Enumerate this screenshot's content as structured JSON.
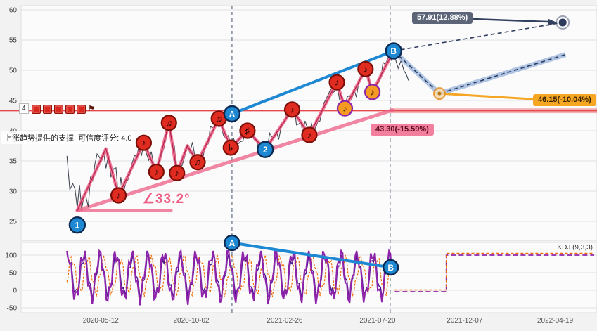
{
  "colors": {
    "red_line": "#e5484d",
    "pink": "#ee5f85",
    "pink_dark": "#a1123a",
    "blue": "#1e88d2",
    "navy": "#2c3a5c",
    "band": "#9db8dd",
    "orange": "#f5a623",
    "purple": "#8e24aa",
    "purple_dark": "#4a148c",
    "orange_dark": "#ef6c00",
    "price": "#2e3440",
    "grid": "#e2e2e4",
    "vline": "#6b7a8c",
    "red_marker": "#e02b20",
    "red_marker_ring": "#7a0f08",
    "orange_marker": "#f59a23",
    "orange_marker_ring": "#8e24aa"
  },
  "icons": {
    "flag": "⚑",
    "red_box_count": 5
  },
  "chart_data": {
    "type": "line",
    "x_ticks": [
      {
        "pos": 0.139,
        "label": "2020-05-12"
      },
      {
        "pos": 0.297,
        "label": "2020-10-02"
      },
      {
        "pos": 0.46,
        "label": "2021-02-26"
      },
      {
        "pos": 0.622,
        "label": "2021-07-20"
      },
      {
        "pos": 0.774,
        "label": "2021-12-07"
      },
      {
        "pos": 0.932,
        "label": "2022-04-19"
      }
    ],
    "main": {
      "ylim": [
        25,
        60
      ],
      "yticks": [
        25,
        30,
        35,
        40,
        45,
        50,
        55,
        60
      ],
      "price": [
        [
          0.08,
          36.5
        ],
        [
          0.09,
          31.0
        ],
        [
          0.098,
          26.8
        ],
        [
          0.148,
          37.0
        ],
        [
          0.17,
          29.3
        ],
        [
          0.214,
          38.0
        ],
        [
          0.236,
          33.2
        ],
        [
          0.258,
          41.3
        ],
        [
          0.272,
          33.0
        ],
        [
          0.29,
          37.5
        ],
        [
          0.308,
          34.8
        ],
        [
          0.345,
          42.0
        ],
        [
          0.366,
          37.2
        ],
        [
          0.395,
          40.0
        ],
        [
          0.426,
          36.9
        ],
        [
          0.473,
          43.5
        ],
        [
          0.503,
          39.3
        ],
        [
          0.551,
          48.0
        ],
        [
          0.565,
          43.7
        ],
        [
          0.601,
          50.2
        ],
        [
          0.613,
          46.4
        ],
        [
          0.65,
          53.2
        ],
        [
          0.658,
          51.0
        ],
        [
          0.668,
          49.3
        ],
        [
          0.676,
          48.3
        ]
      ],
      "wave": [
        [
          0.098,
          26.8
        ],
        [
          0.148,
          37.0
        ],
        [
          0.17,
          29.3
        ],
        [
          0.214,
          38.0
        ],
        [
          0.236,
          33.2
        ],
        [
          0.258,
          41.3
        ],
        [
          0.272,
          33.0
        ],
        [
          0.29,
          37.5
        ],
        [
          0.308,
          34.8
        ],
        [
          0.345,
          42.0
        ],
        [
          0.366,
          37.2
        ],
        [
          0.395,
          40.0
        ],
        [
          0.426,
          36.9
        ],
        [
          0.473,
          43.5
        ],
        [
          0.503,
          39.3
        ],
        [
          0.551,
          48.0
        ],
        [
          0.565,
          43.7
        ],
        [
          0.601,
          50.2
        ],
        [
          0.613,
          46.4
        ],
        [
          0.65,
          53.2
        ]
      ],
      "trendline": [
        [
          0.098,
          26.8
        ],
        [
          0.648,
          43.4
        ]
      ],
      "angle_base": [
        [
          0.098,
          26.8
        ],
        [
          0.262,
          26.8
        ]
      ],
      "angle_label": "∠33.2°",
      "support_level": 43.3,
      "support_label": "43.30(-15.59%)",
      "ab_line": [
        [
          0.368,
          42.8
        ],
        [
          0.65,
          53.2
        ]
      ],
      "target_up": {
        "path": [
          [
            0.65,
            53.2
          ],
          [
            0.945,
            57.91
          ]
        ],
        "label": "57.91(12.88%)"
      },
      "band": [
        [
          0.65,
          53.2
        ],
        [
          0.73,
          46.15
        ],
        [
          0.95,
          52.6
        ]
      ],
      "target_mid": {
        "point": [
          0.73,
          46.15
        ],
        "line_end": [
          0.897,
          45.2
        ],
        "label": "46.15(-10.04%)"
      },
      "vlines": [
        0.368,
        0.644
      ],
      "markers": {
        "red": [
          {
            "x": 0.17,
            "v": 29.3,
            "g": "♪"
          },
          {
            "x": 0.214,
            "v": 38.0,
            "g": "♪"
          },
          {
            "x": 0.236,
            "v": 33.2,
            "g": "♪"
          },
          {
            "x": 0.258,
            "v": 41.3,
            "g": "♫"
          },
          {
            "x": 0.272,
            "v": 33.0,
            "g": "♪"
          },
          {
            "x": 0.308,
            "v": 34.8,
            "g": "♫"
          },
          {
            "x": 0.345,
            "v": 42.0,
            "g": "♫"
          },
          {
            "x": 0.366,
            "v": 37.2,
            "g": "♭"
          },
          {
            "x": 0.395,
            "v": 40.0,
            "g": "♯"
          },
          {
            "x": 0.473,
            "v": 43.5,
            "g": "♪"
          },
          {
            "x": 0.503,
            "v": 39.3,
            "g": "♪"
          },
          {
            "x": 0.551,
            "v": 48.0,
            "g": "♪"
          },
          {
            "x": 0.601,
            "v": 50.2,
            "g": "♪"
          }
        ],
        "orange": [
          {
            "x": 0.565,
            "v": 43.7,
            "g": "♪"
          },
          {
            "x": 0.613,
            "v": 46.4,
            "g": "♪"
          }
        ],
        "blue": [
          {
            "x": 0.098,
            "v": 24.4,
            "label": "1"
          },
          {
            "x": 0.426,
            "v": 36.9,
            "label": "2"
          },
          {
            "x": 0.368,
            "v": 42.8,
            "label": "A"
          },
          {
            "x": 0.65,
            "v": 53.2,
            "label": "B"
          }
        ]
      },
      "note": "上涨趋势提供的支撑: 可信度评分: 4.0",
      "axis_chip": "4"
    },
    "kdj": {
      "label": "KDJ (9,3,3)",
      "yticks": [
        -50,
        0,
        50,
        100
      ],
      "osc_range": [
        0.08,
        0.648
      ],
      "flat": [
        {
          "from": 0.652,
          "to": 0.742,
          "v": -4
        },
        {
          "from": 0.742,
          "to": 1.0,
          "v": 100
        }
      ],
      "ab_line": [
        [
          0.368,
          135
        ],
        [
          0.645,
          65
        ]
      ],
      "ab_labels": [
        "A",
        "B"
      ]
    }
  }
}
